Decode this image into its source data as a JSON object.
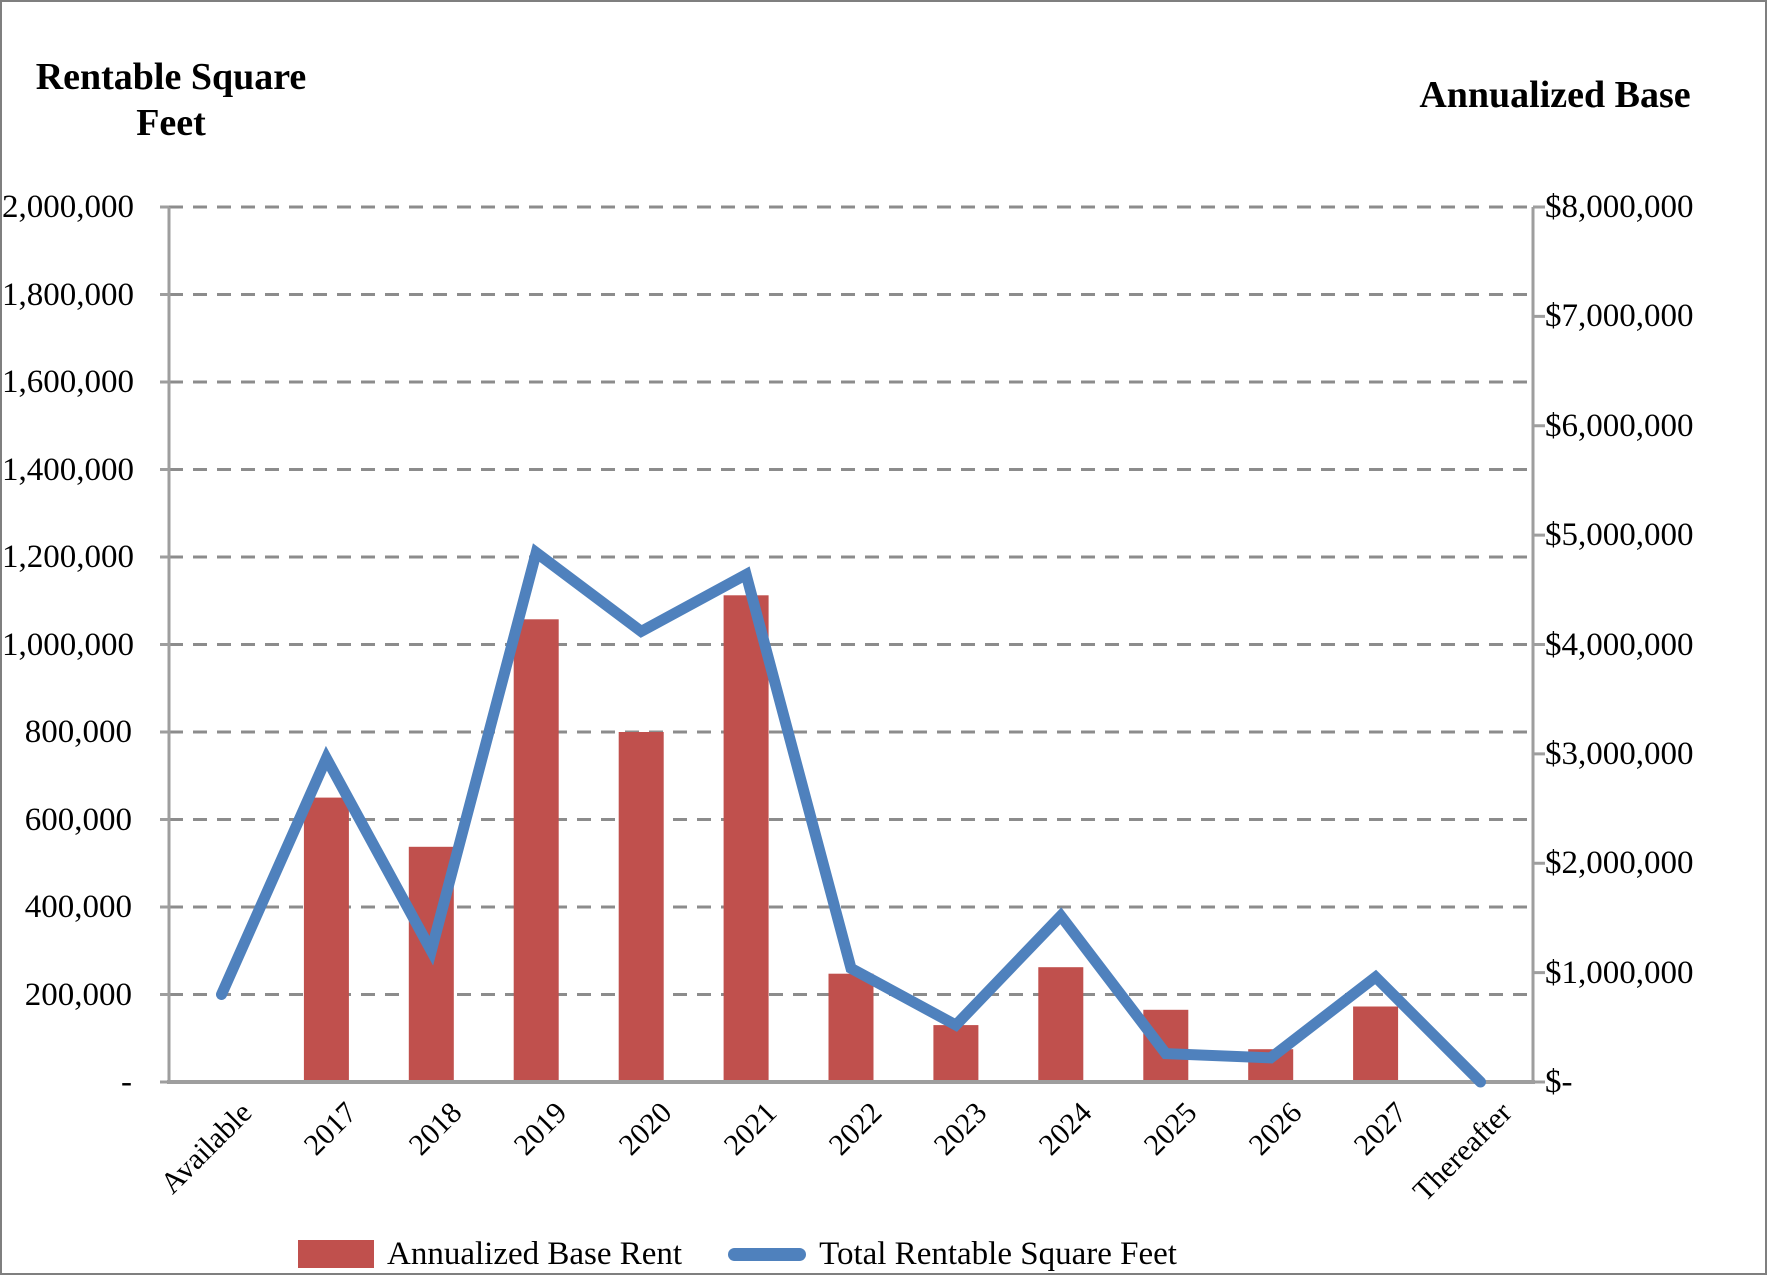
{
  "figure": {
    "left_axis_title": "Rentable Square Feet",
    "right_axis_title": "Annualized Base"
  },
  "chart_data": {
    "type": "combo",
    "categories": [
      "Available",
      "2017",
      "2018",
      "2019",
      "2020",
      "2021",
      "2022",
      "2023",
      "2024",
      "2025",
      "2026",
      "2027",
      "Thereafter"
    ],
    "series": [
      {
        "name": "Annualized Base Rent",
        "type": "bar",
        "axis": "right",
        "color": "#C0504D",
        "values": [
          0,
          2600000,
          2150000,
          4230000,
          3200000,
          4450000,
          990000,
          520000,
          1050000,
          660000,
          300000,
          690000,
          0
        ]
      },
      {
        "name": "Total Rentable Square Feet",
        "type": "line",
        "axis": "left",
        "color": "#4F81BD",
        "values": [
          200000,
          740000,
          300000,
          1210000,
          1030000,
          1160000,
          260000,
          130000,
          380000,
          65000,
          55000,
          240000,
          0
        ]
      }
    ],
    "left_axis": {
      "title": "Rentable Square Feet",
      "min": 0,
      "max": 2000000,
      "step": 200000,
      "tick_labels": [
        "2,000,000",
        "1,800,000",
        "1,600,000",
        "1,400,000",
        "1,200,000",
        "1,000,000",
        "800,000",
        "600,000",
        "400,000",
        "200,000",
        "-"
      ]
    },
    "right_axis": {
      "title": "Annualized Base",
      "min": 0,
      "max": 8000000,
      "step": 1000000,
      "tick_labels": [
        "$8,000,000",
        "$7,000,000",
        "$6,000,000",
        "$5,000,000",
        "$4,000,000",
        "$3,000,000",
        "$2,000,000",
        "$1,000,000",
        "$-"
      ]
    },
    "grid": "dashed-horizontal",
    "legend_position": "bottom"
  },
  "legend": {
    "items": [
      {
        "label": "Annualized Base Rent",
        "swatch": "bar",
        "color": "#C0504D"
      },
      {
        "label": "Total Rentable Square Feet",
        "swatch": "line",
        "color": "#4F81BD"
      }
    ]
  },
  "colors": {
    "bar": "#C0504D",
    "line": "#4F81BD",
    "grid": "#8C8C8C",
    "axis": "#9E9E9E",
    "border": "#7F7F7F"
  }
}
